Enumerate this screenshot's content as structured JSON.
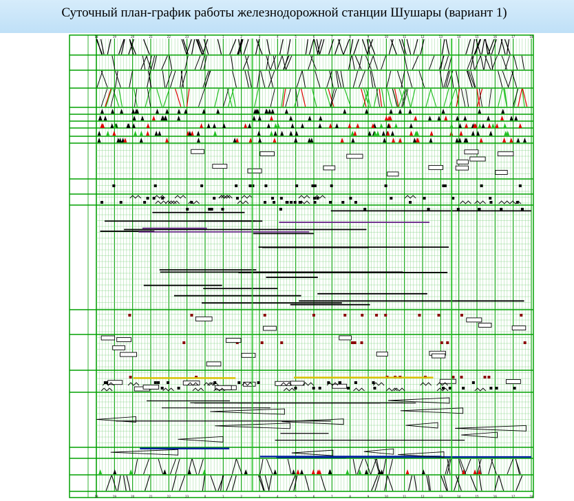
{
  "header": {
    "title": "Суточный план-график работы железнодорожной станции Шушары (вариант 1)"
  },
  "schedule": {
    "hour_labels": [
      "18",
      "19",
      "20",
      "21",
      "22",
      "23",
      "0",
      "1",
      "2",
      "3",
      "4",
      "5",
      "6",
      "7",
      "8",
      "9",
      "10",
      "11",
      "12",
      "13",
      "14",
      "15",
      "16",
      "17",
      "18"
    ],
    "section_labels": [
      "",
      "",
      "",
      "",
      "",
      "",
      "",
      "",
      "",
      "",
      "",
      "",
      "",
      "",
      "",
      ""
    ],
    "row_label_count": 60,
    "colors": {
      "grid": "#00a000",
      "ink": "#000000",
      "red_mark": "#e00000",
      "green_mark": "#20c020",
      "yellow_bar": "#d8c000",
      "blue_line": "#0020a0",
      "purple_line": "#6a2a8a"
    }
  }
}
